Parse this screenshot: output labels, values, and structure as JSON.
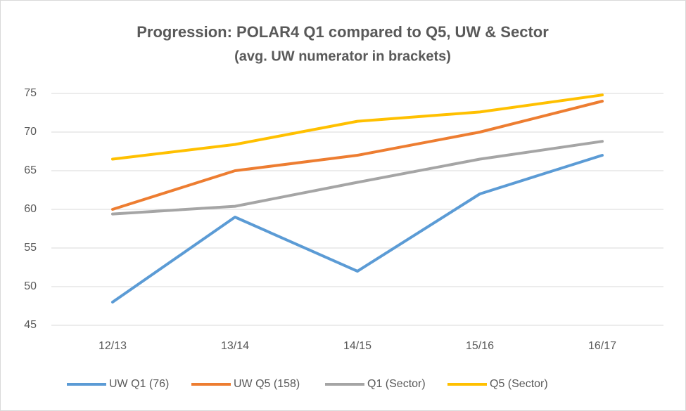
{
  "chart_data": {
    "type": "line",
    "title": "Progression: POLAR4 Q1 compared to Q5, UW & Sector",
    "subtitle": "(avg. UW numerator in brackets)",
    "categories": [
      "12/13",
      "13/14",
      "14/15",
      "15/16",
      "16/17"
    ],
    "series": [
      {
        "name": "UW Q1 (76)",
        "color": "#5b9bd5",
        "values": [
          48,
          59,
          52,
          62,
          67
        ]
      },
      {
        "name": "UW Q5 (158)",
        "color": "#ed7d31",
        "values": [
          60,
          65,
          67,
          70,
          74
        ]
      },
      {
        "name": "Q1 (Sector)",
        "color": "#a5a5a5",
        "values": [
          59.4,
          60.4,
          63.5,
          66.5,
          68.8
        ]
      },
      {
        "name": "Q5 (Sector)",
        "color": "#ffc000",
        "values": [
          66.5,
          68.4,
          71.4,
          72.6,
          74.8
        ]
      }
    ],
    "ylim": [
      45,
      75
    ],
    "yticks": [
      45,
      50,
      55,
      60,
      65,
      70,
      75
    ],
    "grid": true,
    "legend": "bottom"
  }
}
